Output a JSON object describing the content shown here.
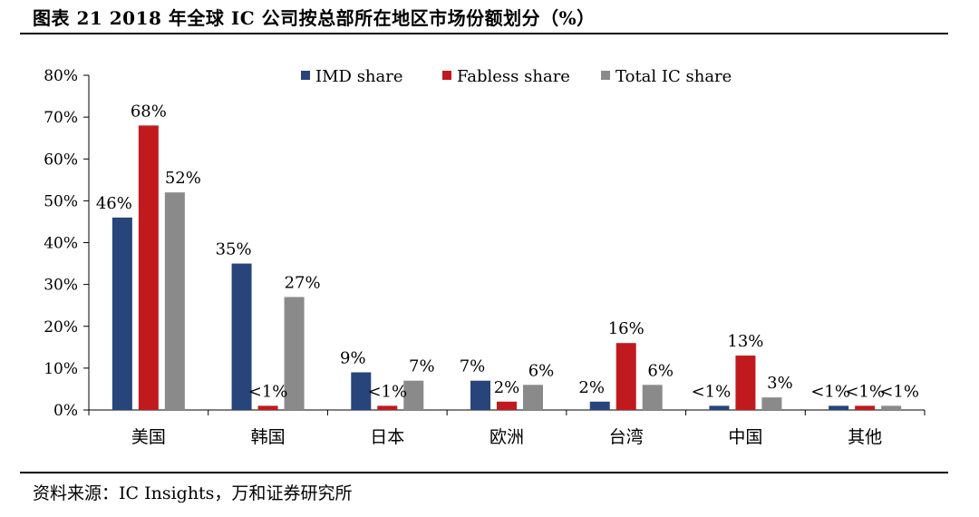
{
  "figure": {
    "title": "图表 21   2018 年全球 IC 公司按总部所在地区市场份额划分（%）",
    "source": "资料来源：IC Insights，万和证券研究所"
  },
  "chart_data": {
    "type": "bar",
    "categories": [
      "美国",
      "韩国",
      "日本",
      "欧洲",
      "台湾",
      "中国",
      "其他"
    ],
    "ylim": [
      0,
      80
    ],
    "yticks": [
      0,
      10,
      20,
      30,
      40,
      50,
      60,
      70,
      80
    ],
    "ytick_labels": [
      "0%",
      "10%",
      "20%",
      "30%",
      "40%",
      "50%",
      "60%",
      "70%",
      "80%"
    ],
    "legend_position": "top",
    "grid": false,
    "series": [
      {
        "name": "IMD share",
        "color": "#27457a",
        "values": [
          46,
          35,
          9,
          7,
          2,
          1,
          1
        ],
        "labels": [
          "46%",
          "35%",
          "9%",
          "7%",
          "2%",
          "<1%",
          "<1%"
        ]
      },
      {
        "name": "Fabless share",
        "color": "#c01a1f",
        "values": [
          68,
          1,
          1,
          2,
          16,
          13,
          1
        ],
        "labels": [
          "68%",
          "<1%",
          "<1%",
          "2%",
          "16%",
          "13%",
          "<1%"
        ]
      },
      {
        "name": "Total IC share",
        "color": "#8a8a8a",
        "values": [
          52,
          27,
          7,
          6,
          6,
          3,
          1
        ],
        "labels": [
          "52%",
          "27%",
          "7%",
          "6%",
          "6%",
          "3%",
          "<1%"
        ]
      }
    ]
  }
}
